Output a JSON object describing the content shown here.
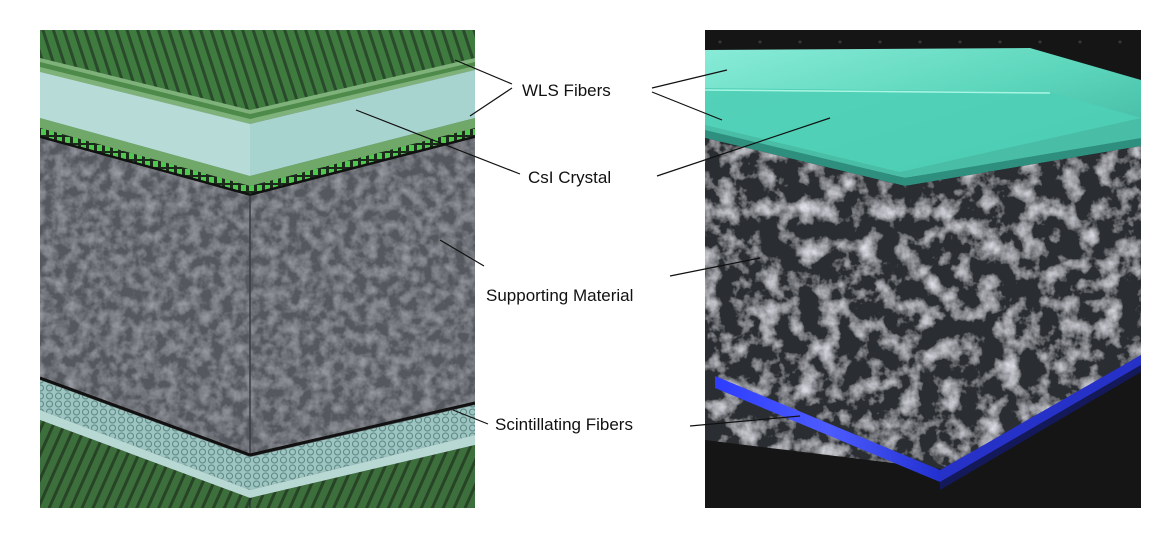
{
  "labels": {
    "wls_fibers": "WLS Fibers",
    "csi_crystal": "CsI Crystal",
    "supporting_material": "Supporting Material",
    "scintillating_fibers": "Scintillating Fibers"
  },
  "colors": {
    "wls_fiber_green": "#3f7a3e",
    "wls_stripe_dark": "#2a4a2c",
    "fiber_bright": "#4ec94e",
    "csi_crystal": "#a8d4d0",
    "foam_gray": "#5a5d63",
    "scint_fiber_teal": "#9cc4c0",
    "glow_cyan": "#6ef0d0",
    "glow_blue": "#3b4dff",
    "photo_background": "#151515"
  }
}
